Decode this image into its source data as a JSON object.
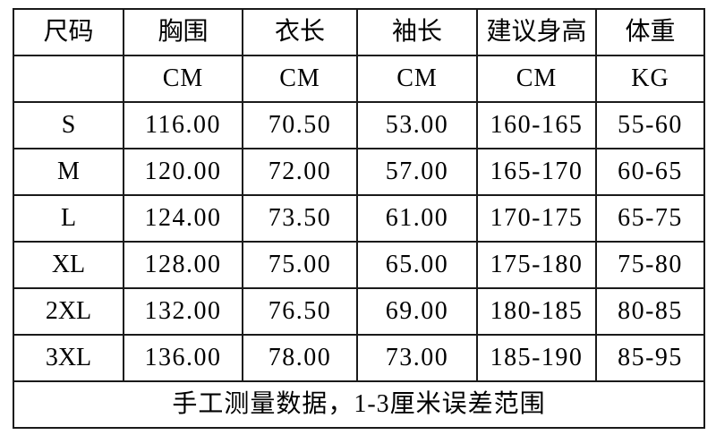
{
  "chart_data": {
    "type": "table",
    "columns": [
      "尺码",
      "胸围",
      "衣长",
      "袖长",
      "建议身高",
      "体重"
    ],
    "units": [
      "",
      "CM",
      "CM",
      "CM",
      "CM",
      "KG"
    ],
    "rows": [
      [
        "S",
        "116.00",
        "70.50",
        "53.00",
        "160-165",
        "55-60"
      ],
      [
        "M",
        "120.00",
        "72.00",
        "57.00",
        "165-170",
        "60-65"
      ],
      [
        "L",
        "124.00",
        "73.50",
        "61.00",
        "170-175",
        "65-75"
      ],
      [
        "XL",
        "128.00",
        "75.00",
        "65.00",
        "175-180",
        "75-80"
      ],
      [
        "2XL",
        "132.00",
        "76.50",
        "69.00",
        "180-185",
        "80-85"
      ],
      [
        "3XL",
        "136.00",
        "78.00",
        "73.00",
        "185-190",
        "85-95"
      ]
    ],
    "footer_note": "手工测量数据，1-3厘米误差范围"
  },
  "colors": {
    "border": "#1a1a1a",
    "text": "#000000",
    "background": "#ffffff"
  }
}
